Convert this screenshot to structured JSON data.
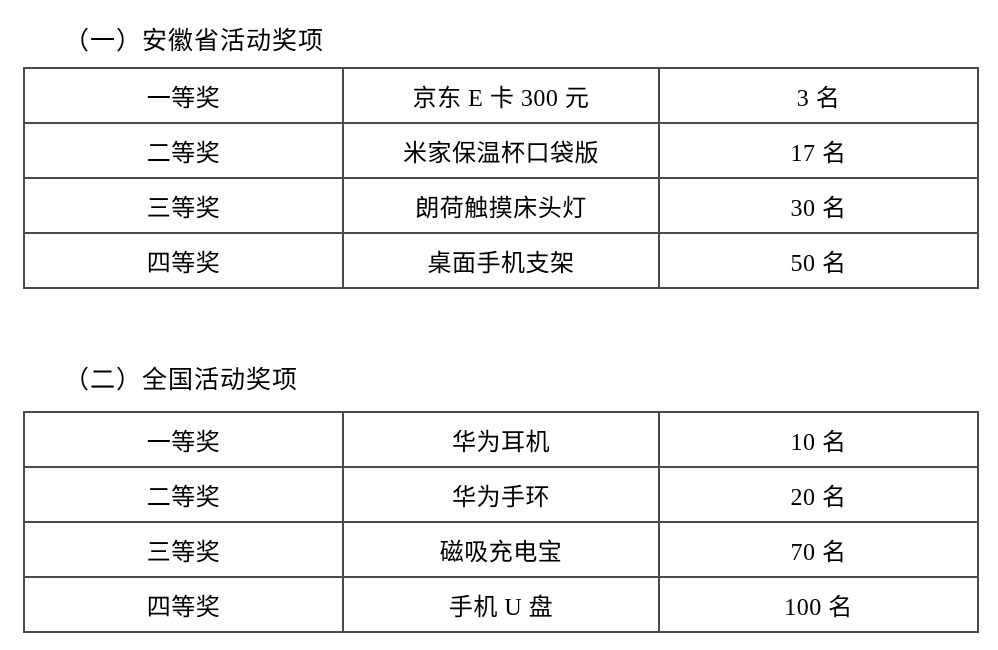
{
  "page": {
    "background_color": "#ffffff",
    "text_color": "#000000",
    "border_color": "#4a4a4a"
  },
  "sections": [
    {
      "heading": "（一）安徽省活动奖项",
      "table": {
        "rows": [
          {
            "rank": "一等奖",
            "prize": "京东 E 卡 300 元",
            "quota": "3 名"
          },
          {
            "rank": "二等奖",
            "prize": "米家保温杯口袋版",
            "quota": "17 名"
          },
          {
            "rank": "三等奖",
            "prize": "朗荷触摸床头灯",
            "quota": "30 名"
          },
          {
            "rank": "四等奖",
            "prize": "桌面手机支架",
            "quota": "50 名"
          }
        ]
      }
    },
    {
      "heading": "（二）全国活动奖项",
      "table": {
        "rows": [
          {
            "rank": "一等奖",
            "prize": "华为耳机",
            "quota": "10 名"
          },
          {
            "rank": "二等奖",
            "prize": "华为手环",
            "quota": "20 名"
          },
          {
            "rank": "三等奖",
            "prize": "磁吸充电宝",
            "quota": "70 名"
          },
          {
            "rank": "四等奖",
            "prize": "手机 U 盘",
            "quota": "100 名"
          }
        ]
      }
    }
  ]
}
